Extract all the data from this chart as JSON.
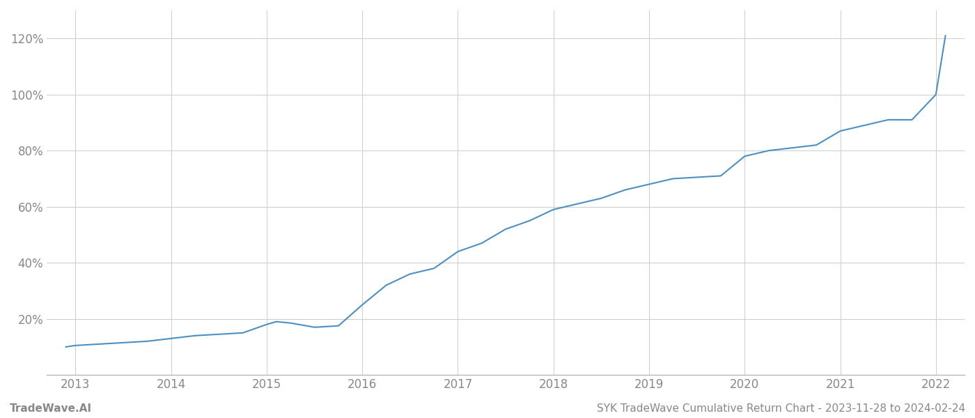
{
  "title": "",
  "footer_left": "TradeWave.AI",
  "footer_right": "SYK TradeWave Cumulative Return Chart - 2023-11-28 to 2024-02-24",
  "line_color": "#4a90c4",
  "background_color": "#ffffff",
  "grid_color": "#cccccc",
  "x_years": [
    2013,
    2014,
    2015,
    2016,
    2017,
    2018,
    2019,
    2020,
    2021,
    2022
  ],
  "x_data": [
    2012.9,
    2013.0,
    2013.25,
    2013.5,
    2013.75,
    2014.0,
    2014.25,
    2014.5,
    2014.75,
    2015.0,
    2015.1,
    2015.25,
    2015.5,
    2015.75,
    2016.0,
    2016.25,
    2016.5,
    2016.75,
    2017.0,
    2017.25,
    2017.5,
    2017.75,
    2018.0,
    2018.25,
    2018.5,
    2018.75,
    2019.0,
    2019.25,
    2019.5,
    2019.75,
    2020.0,
    2020.25,
    2020.5,
    2020.75,
    2021.0,
    2021.25,
    2021.5,
    2021.75,
    2022.0,
    2022.1
  ],
  "y_data": [
    10,
    10.5,
    11,
    11.5,
    12,
    13,
    14,
    14.5,
    15,
    18,
    19,
    18.5,
    17,
    17.5,
    25,
    32,
    36,
    38,
    44,
    47,
    52,
    55,
    59,
    61,
    63,
    66,
    68,
    70,
    70.5,
    71,
    78,
    80,
    81,
    82,
    87,
    89,
    91,
    91,
    100,
    121
  ],
  "ylim": [
    0,
    130
  ],
  "yticks": [
    20,
    40,
    60,
    80,
    100,
    120
  ],
  "ytick_labels": [
    "20%",
    "40%",
    "60%",
    "80%",
    "100%",
    "120%"
  ],
  "xlim": [
    2012.7,
    2022.3
  ],
  "line_width": 1.5,
  "font_color": "#888888",
  "footer_fontsize": 11,
  "tick_fontsize": 12
}
